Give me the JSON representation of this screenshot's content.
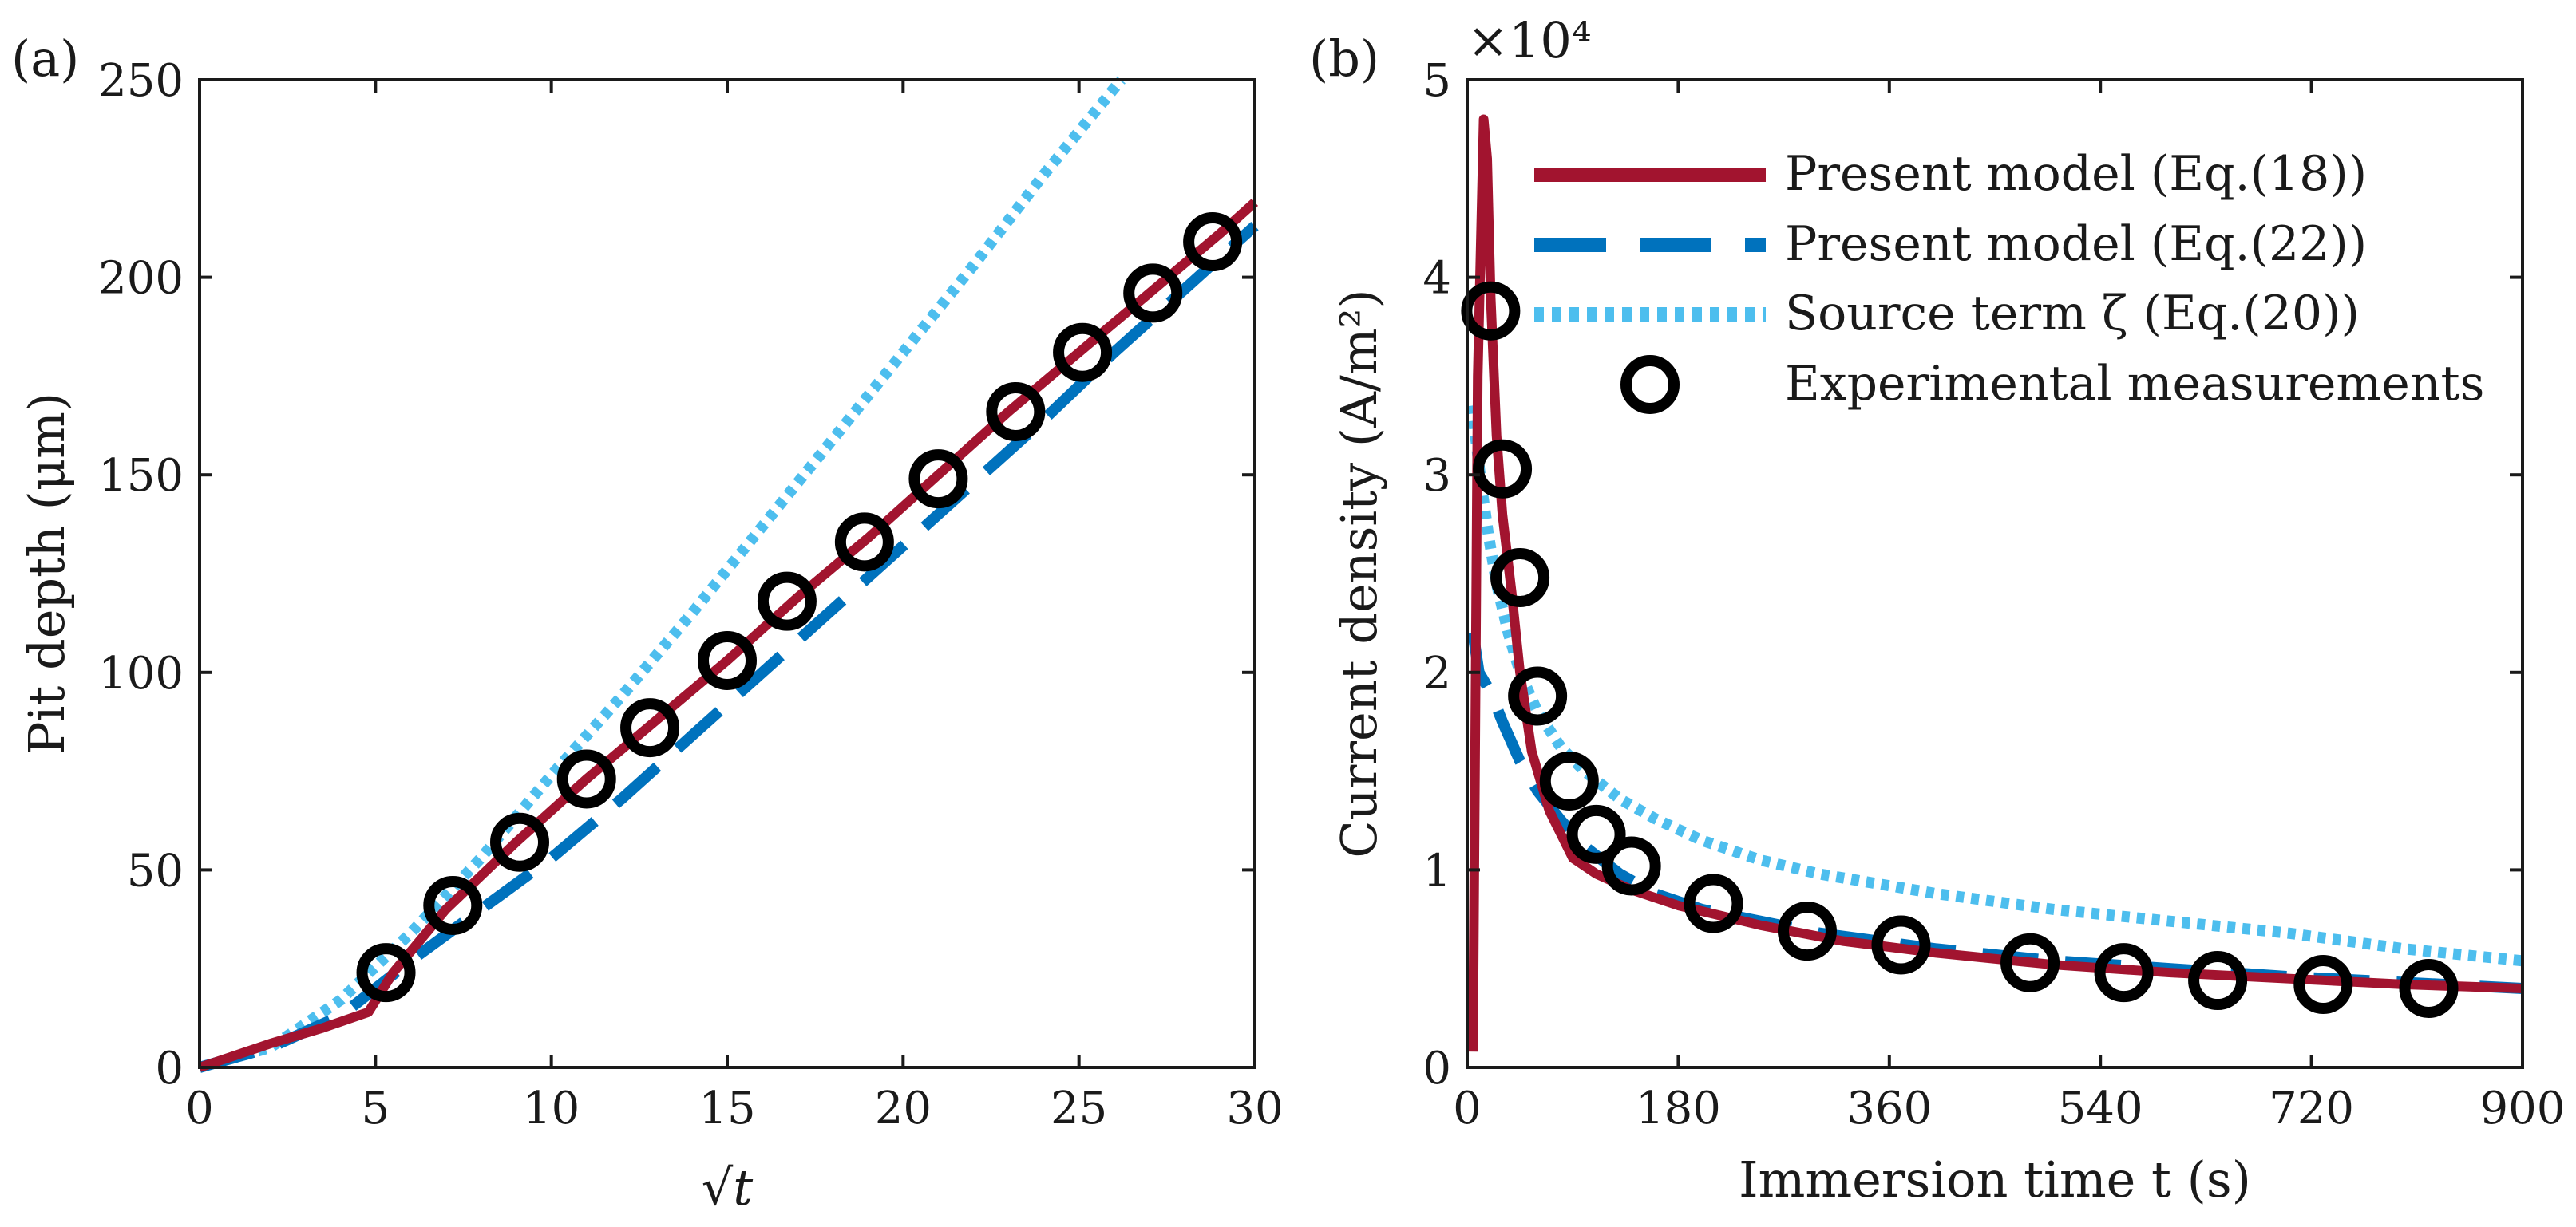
{
  "colors": {
    "red": "#A2142F",
    "blue": "#0072BD",
    "lightblue": "#4DBEEE",
    "black": "#000000"
  },
  "chart_data": [
    {
      "type": "line",
      "panel_label": "(a)",
      "xlabel": "√t",
      "ylabel": "Pit depth (μm)",
      "xlim": [
        0,
        30
      ],
      "ylim": [
        0,
        250
      ],
      "xticks": [
        0,
        5,
        10,
        15,
        20,
        25,
        30
      ],
      "yticks": [
        0,
        50,
        100,
        150,
        200,
        250
      ],
      "series": [
        {
          "name": "Present model (Eq.(18))",
          "style": "solid",
          "color": "#A2142F",
          "x": [
            0,
            2,
            3.5,
            4.8,
            5.5,
            7,
            9,
            11,
            13,
            15,
            17,
            19,
            21,
            23,
            25,
            27,
            29,
            30
          ],
          "y": [
            0,
            6,
            10,
            14,
            24,
            40,
            57,
            73,
            88,
            103,
            119,
            134,
            150,
            166,
            181,
            196,
            211,
            219
          ]
        },
        {
          "name": "Present model (Eq.(22))",
          "style": "dashed",
          "color": "#0072BD",
          "x": [
            0,
            2,
            4,
            6,
            8,
            10,
            12,
            14,
            16,
            18,
            20,
            22,
            24,
            26,
            28,
            30
          ],
          "y": [
            0,
            5,
            13,
            27,
            40,
            53,
            68,
            84,
            100,
            116,
            132,
            148,
            164,
            181,
            197,
            213
          ]
        },
        {
          "name": "Source term ζ (Eq.(20))",
          "style": "dotted",
          "color": "#4DBEEE",
          "x": [
            0,
            2,
            4,
            6,
            8,
            10,
            12,
            14,
            16,
            18,
            20,
            22,
            24,
            26.2
          ],
          "y": [
            0,
            5,
            17,
            34,
            53,
            74,
            94,
            115,
            137,
            159,
            181,
            203,
            226,
            250
          ]
        },
        {
          "name": "Experimental measurements",
          "style": "marker",
          "color": "#000000",
          "x": [
            5.3,
            7.2,
            9.1,
            11.0,
            12.8,
            15.0,
            16.7,
            18.9,
            21.0,
            23.2,
            25.1,
            27.1,
            28.8
          ],
          "y": [
            24,
            41,
            57,
            73,
            86,
            103,
            118,
            133,
            149,
            166,
            181,
            196,
            209
          ]
        }
      ]
    },
    {
      "type": "line",
      "panel_label": "(b)",
      "xlabel": "Immersion time t (s)",
      "ylabel": "Current density (A/m²)",
      "y_exponent": "×10⁴",
      "xlim": [
        0,
        900
      ],
      "ylim": [
        0,
        5
      ],
      "xticks": [
        0,
        180,
        360,
        540,
        720,
        900
      ],
      "yticks": [
        0,
        1,
        2,
        3,
        4,
        5
      ],
      "legend_position": "top-right",
      "series": [
        {
          "name": "Present model (Eq.(18))",
          "style": "solid",
          "color": "#A2142F",
          "x": [
            5,
            9,
            14,
            17,
            20,
            25,
            30,
            38,
            45,
            55,
            70,
            90,
            110,
            140,
            180,
            250,
            320,
            400,
            500,
            600,
            700,
            800,
            900
          ],
          "y": [
            0.08,
            3.5,
            4.8,
            4.6,
            3.9,
            3.2,
            2.8,
            2.4,
            2.0,
            1.6,
            1.3,
            1.06,
            0.98,
            0.9,
            0.82,
            0.72,
            0.64,
            0.58,
            0.52,
            0.48,
            0.45,
            0.42,
            0.4
          ]
        },
        {
          "name": "Present model (Eq.(22))",
          "style": "dashed",
          "color": "#0072BD",
          "x": [
            5,
            10,
            20,
            30,
            45,
            60,
            80,
            100,
            130,
            160,
            200,
            300,
            400,
            500,
            600,
            700,
            800,
            900
          ],
          "y": [
            2.2,
            2.0,
            1.9,
            1.75,
            1.55,
            1.4,
            1.25,
            1.12,
            0.98,
            0.88,
            0.8,
            0.68,
            0.6,
            0.54,
            0.5,
            0.46,
            0.43,
            0.4
          ]
        },
        {
          "name": "Source term ζ (Eq.(20))",
          "style": "dotted",
          "color": "#4DBEEE",
          "x": [
            4,
            8,
            12,
            18,
            25,
            35,
            45,
            60,
            80,
            100,
            130,
            160,
            200,
            250,
            300,
            400,
            500,
            600,
            700,
            800,
            900
          ],
          "y": [
            3.35,
            3.15,
            2.95,
            2.7,
            2.45,
            2.2,
            2.0,
            1.8,
            1.62,
            1.5,
            1.36,
            1.26,
            1.15,
            1.05,
            0.98,
            0.88,
            0.8,
            0.74,
            0.68,
            0.6,
            0.54
          ]
        },
        {
          "name": "Experimental measurements",
          "style": "marker",
          "color": "#000000",
          "x": [
            20,
            30,
            45,
            60,
            87,
            110,
            140,
            210,
            290,
            370,
            480,
            560,
            640,
            730,
            820
          ],
          "y": [
            3.83,
            3.03,
            2.48,
            1.88,
            1.45,
            1.18,
            1.02,
            0.83,
            0.69,
            0.62,
            0.53,
            0.48,
            0.44,
            0.42,
            0.4
          ]
        }
      ]
    }
  ]
}
